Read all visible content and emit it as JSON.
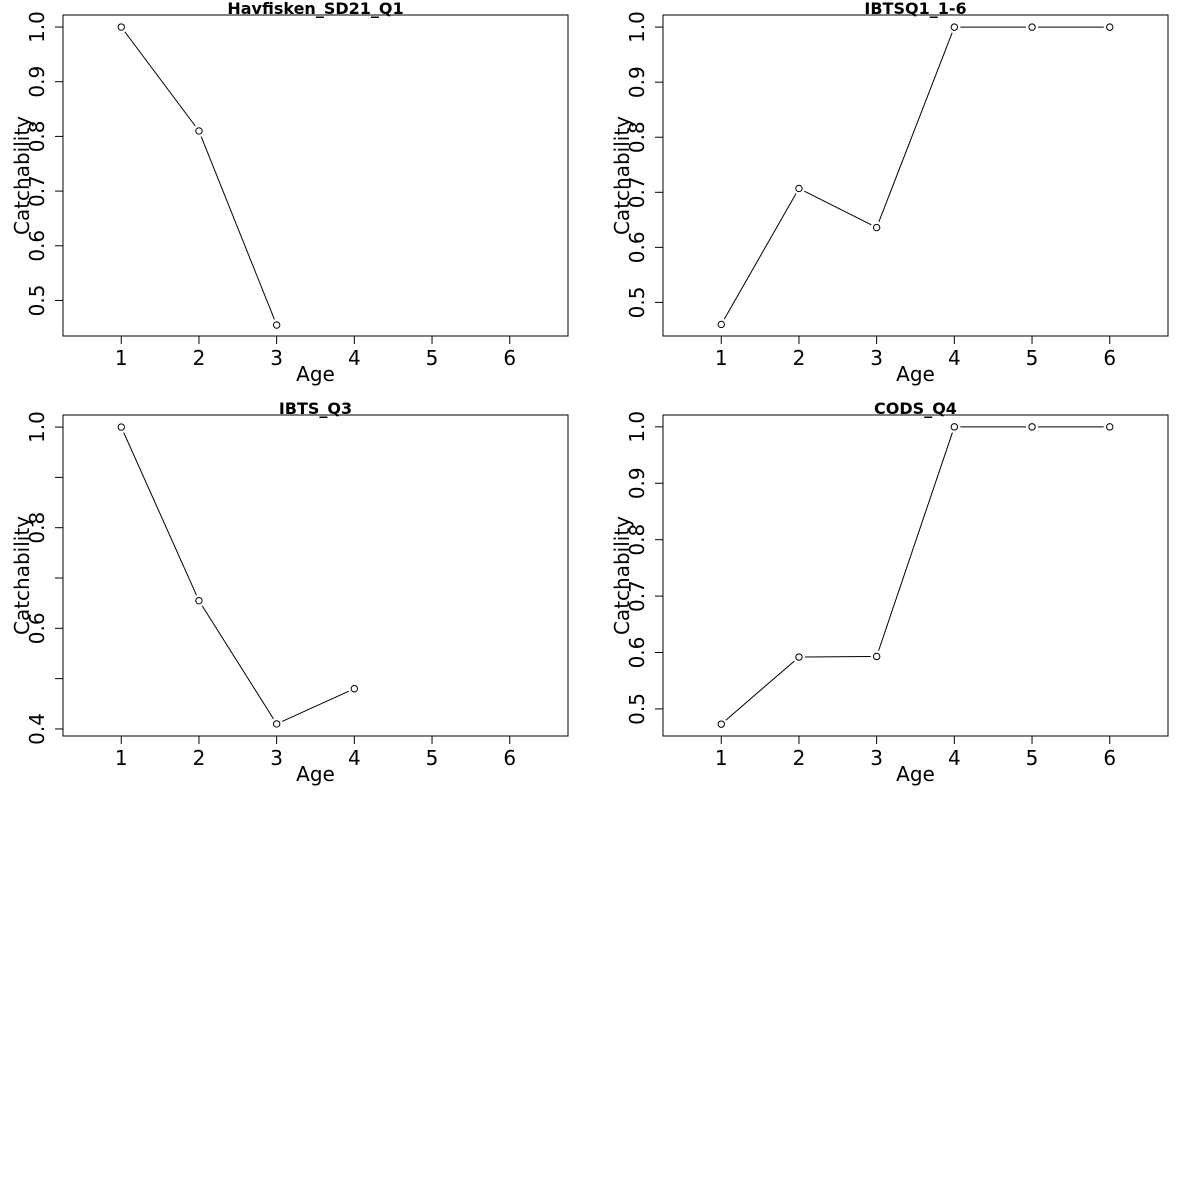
{
  "chart_data": [
    {
      "type": "line",
      "title": "Havfisken_SD21_Q1",
      "xlabel": "Age",
      "ylabel": "Catchability",
      "x": [
        1,
        2,
        3
      ],
      "y": [
        1.0,
        0.81,
        0.455
      ],
      "xlim": [
        0.25,
        6.75
      ],
      "ylim": [
        0.435,
        1.022
      ],
      "xticks": [
        1,
        2,
        3,
        4,
        5,
        6
      ],
      "yticks": [
        0.5,
        0.6,
        0.7,
        0.8,
        0.9,
        1.0
      ],
      "ytick_labels": [
        "0.5",
        "0.6",
        "0.7",
        "0.8",
        "0.9",
        "1.0"
      ],
      "grid": false
    },
    {
      "type": "line",
      "title": "IBTSQ1_1-6",
      "xlabel": "Age",
      "ylabel": "Catchability",
      "x": [
        1,
        2,
        3,
        4,
        5,
        6
      ],
      "y": [
        0.46,
        0.707,
        0.636,
        1.0,
        1.0,
        1.0
      ],
      "xlim": [
        0.25,
        6.75
      ],
      "ylim": [
        0.439,
        1.022
      ],
      "xticks": [
        1,
        2,
        3,
        4,
        5,
        6
      ],
      "yticks": [
        0.5,
        0.6,
        0.7,
        0.8,
        0.9,
        1.0
      ],
      "ytick_labels": [
        "0.5",
        "0.6",
        "0.7",
        "0.8",
        "0.9",
        "1.0"
      ],
      "grid": false
    },
    {
      "type": "line",
      "title": "IBTS_Q3",
      "xlabel": "Age",
      "ylabel": "Catchability",
      "x": [
        1,
        2,
        3,
        4
      ],
      "y": [
        1.0,
        0.655,
        0.41,
        0.48
      ],
      "xlim": [
        0.25,
        6.75
      ],
      "ylim": [
        0.386,
        1.024
      ],
      "xticks": [
        1,
        2,
        3,
        4,
        5,
        6
      ],
      "yticks": [
        0.4,
        0.5,
        0.6,
        0.7,
        0.8,
        0.9,
        1.0
      ],
      "ytick_labels": [
        "0.4",
        "",
        "0.6",
        "",
        "0.8",
        "",
        "1.0"
      ],
      "grid": false
    },
    {
      "type": "line",
      "title": "CODS_Q4",
      "xlabel": "Age",
      "ylabel": "Catchability",
      "x": [
        1,
        2,
        3,
        4,
        5,
        6
      ],
      "y": [
        0.473,
        0.592,
        0.593,
        1.0,
        1.0,
        1.0
      ],
      "xlim": [
        0.25,
        6.75
      ],
      "ylim": [
        0.452,
        1.021
      ],
      "xticks": [
        1,
        2,
        3,
        4,
        5,
        6
      ],
      "yticks": [
        0.5,
        0.6,
        0.7,
        0.8,
        0.9,
        1.0
      ],
      "ytick_labels": [
        "0.5",
        "0.6",
        "0.7",
        "0.8",
        "0.9",
        "1.0"
      ],
      "grid": false
    }
  ]
}
